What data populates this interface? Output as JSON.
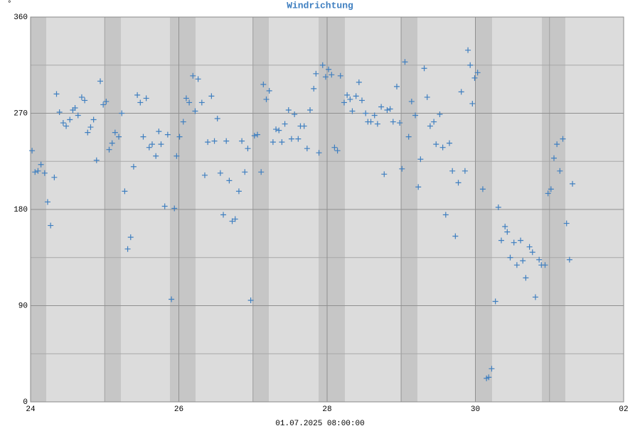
{
  "chart_data": {
    "type": "scatter",
    "title": "Windrichtung",
    "y_unit": "°",
    "xlabel": "01.07.2025 08:00:00",
    "color": "#3f7fc0",
    "grid": true,
    "xlim": [
      24,
      32
    ],
    "xticks": [
      24,
      26,
      28,
      30,
      {
        "value": 32,
        "label": "02"
      }
    ],
    "xminor": [
      25,
      27,
      29,
      31
    ],
    "ylim": [
      0,
      360
    ],
    "yticks": [
      0,
      90,
      180,
      270,
      360
    ],
    "yminor": [
      45,
      135,
      225,
      315
    ],
    "x": [
      24.02,
      24.06,
      24.1,
      24.14,
      24.19,
      24.23,
      24.27,
      24.32,
      24.35,
      24.39,
      24.44,
      24.48,
      24.53,
      24.57,
      24.6,
      24.64,
      24.69,
      24.73,
      24.77,
      24.81,
      24.85,
      24.89,
      24.94,
      24.98,
      25.02,
      25.06,
      25.1,
      25.14,
      25.19,
      25.23,
      25.27,
      25.31,
      25.35,
      25.39,
      25.44,
      25.48,
      25.52,
      25.56,
      25.6,
      25.64,
      25.69,
      25.73,
      25.76,
      25.81,
      25.85,
      25.9,
      25.94,
      25.97,
      26.01,
      26.06,
      26.1,
      26.14,
      26.19,
      26.22,
      26.26,
      26.31,
      26.35,
      26.39,
      26.44,
      26.48,
      26.52,
      26.56,
      26.6,
      26.64,
      26.68,
      26.72,
      26.76,
      26.81,
      26.85,
      26.89,
      26.93,
      26.97,
      27.02,
      27.06,
      27.11,
      27.14,
      27.18,
      27.22,
      27.27,
      27.31,
      27.35,
      27.39,
      27.43,
      27.48,
      27.52,
      27.56,
      27.61,
      27.64,
      27.69,
      27.73,
      27.77,
      27.82,
      27.85,
      27.89,
      27.94,
      27.98,
      28.02,
      28.06,
      28.1,
      28.14,
      28.18,
      28.23,
      28.27,
      28.31,
      28.34,
      28.39,
      28.43,
      28.47,
      28.52,
      28.55,
      28.59,
      28.64,
      28.68,
      28.73,
      28.77,
      28.81,
      28.85,
      28.89,
      28.94,
      28.98,
      29.01,
      29.05,
      29.1,
      29.14,
      29.19,
      29.23,
      29.26,
      29.31,
      29.35,
      29.39,
      29.44,
      29.47,
      29.52,
      29.56,
      29.6,
      29.65,
      29.69,
      29.73,
      29.77,
      29.81,
      29.86,
      29.9,
      29.93,
      29.96,
      29.99,
      30.03,
      30.1,
      30.15,
      30.18,
      30.22,
      30.27,
      30.31,
      30.35,
      30.4,
      30.43,
      30.47,
      30.52,
      30.56,
      30.61,
      30.64,
      30.68,
      30.73,
      30.77,
      30.81,
      30.86,
      30.89,
      30.94,
      30.98,
      31.02,
      31.06,
      31.1,
      31.14,
      31.18,
      31.23,
      31.27,
      31.31
    ],
    "values": [
      235,
      215,
      216,
      222,
      214,
      187,
      165,
      210,
      288,
      271,
      261,
      258,
      264,
      273,
      275,
      268,
      285,
      282,
      252,
      257,
      264,
      226,
      300,
      278,
      281,
      236,
      242,
      252,
      248,
      270,
      197,
      143,
      154,
      220,
      287,
      280,
      248,
      284,
      238,
      241,
      230,
      253,
      241,
      183,
      250,
      96,
      181,
      230,
      248,
      262,
      284,
      280,
      305,
      272,
      302,
      280,
      212,
      243,
      286,
      244,
      265,
      214,
      175,
      244,
      207,
      169,
      171,
      197,
      244,
      215,
      237,
      95,
      249,
      250,
      215,
      297,
      283,
      291,
      243,
      255,
      254,
      243,
      260,
      273,
      246,
      269,
      246,
      258,
      258,
      237,
      273,
      293,
      307,
      233,
      315,
      304,
      311,
      306,
      238,
      235,
      305,
      280,
      287,
      283,
      272,
      286,
      299,
      282,
      270,
      262,
      262,
      268,
      260,
      276,
      213,
      273,
      274,
      262,
      295,
      261,
      218,
      318,
      248,
      281,
      268,
      201,
      227,
      312,
      285,
      258,
      262,
      241,
      269,
      238,
      175,
      242,
      216,
      155,
      205,
      290,
      216,
      329,
      315,
      279,
      303,
      308,
      199,
      22,
      23,
      31,
      94,
      182,
      151,
      164,
      159,
      135,
      149,
      128,
      151,
      132,
      116,
      145,
      140,
      98,
      133,
      128,
      128,
      195,
      199,
      228,
      241,
      216,
      246,
      167,
      133,
      204
    ]
  }
}
